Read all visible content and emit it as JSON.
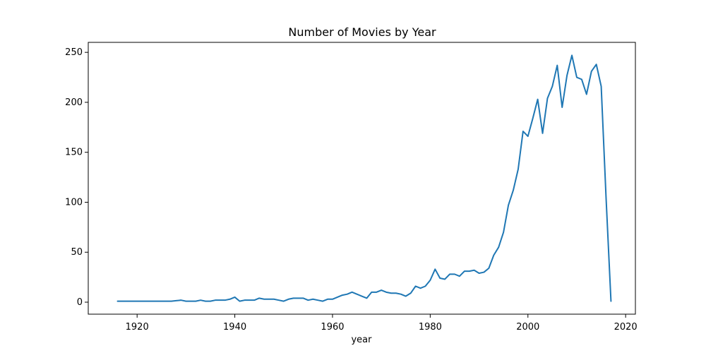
{
  "chart_data": {
    "type": "line",
    "title": "Number of Movies by Year",
    "xlabel": "year",
    "ylabel": "",
    "xlim": [
      1910,
      2022
    ],
    "ylim": [
      -12,
      260
    ],
    "grid": false,
    "legend": "none",
    "x_ticks": [
      1920,
      1940,
      1960,
      1980,
      2000,
      2020
    ],
    "y_ticks": [
      0,
      50,
      100,
      150,
      200,
      250
    ],
    "series": [
      {
        "color": "#1f77b4",
        "x": [
          1916,
          1917,
          1918,
          1919,
          1920,
          1921,
          1922,
          1923,
          1924,
          1925,
          1926,
          1927,
          1928,
          1929,
          1930,
          1931,
          1932,
          1933,
          1934,
          1935,
          1936,
          1937,
          1938,
          1939,
          1940,
          1941,
          1942,
          1943,
          1944,
          1945,
          1946,
          1947,
          1948,
          1949,
          1950,
          1951,
          1952,
          1953,
          1954,
          1955,
          1956,
          1957,
          1958,
          1959,
          1960,
          1961,
          1962,
          1963,
          1964,
          1965,
          1966,
          1967,
          1968,
          1969,
          1970,
          1971,
          1972,
          1973,
          1974,
          1975,
          1976,
          1977,
          1978,
          1979,
          1980,
          1981,
          1982,
          1983,
          1984,
          1985,
          1986,
          1987,
          1988,
          1989,
          1990,
          1991,
          1992,
          1993,
          1994,
          1995,
          1996,
          1997,
          1998,
          1999,
          2000,
          2001,
          2002,
          2003,
          2004,
          2005,
          2006,
          2007,
          2008,
          2009,
          2010,
          2011,
          2012,
          2013,
          2014,
          2015,
          2016,
          2017
        ],
        "values": [
          1,
          1,
          1,
          1,
          1,
          1,
          1,
          1,
          1,
          1,
          1,
          1,
          1.5,
          2,
          1,
          1,
          1,
          2,
          1,
          1,
          2,
          2,
          2,
          3,
          5,
          1,
          2,
          2,
          2,
          4,
          3,
          3,
          3,
          2,
          1,
          3,
          4,
          4,
          4,
          2,
          3,
          2,
          1,
          3,
          3,
          5,
          7,
          8,
          10,
          8,
          6,
          4,
          10,
          10,
          12,
          10,
          9,
          9,
          8,
          6,
          9,
          16,
          14,
          16,
          22,
          33,
          24,
          23,
          28,
          28,
          26,
          31,
          31,
          32,
          29,
          30,
          34,
          47,
          55,
          70,
          97,
          112,
          133,
          171,
          166,
          184,
          203,
          169,
          204,
          216,
          237,
          195,
          227,
          247,
          225,
          223,
          208,
          231,
          238,
          216,
          104,
          1
        ]
      }
    ]
  }
}
